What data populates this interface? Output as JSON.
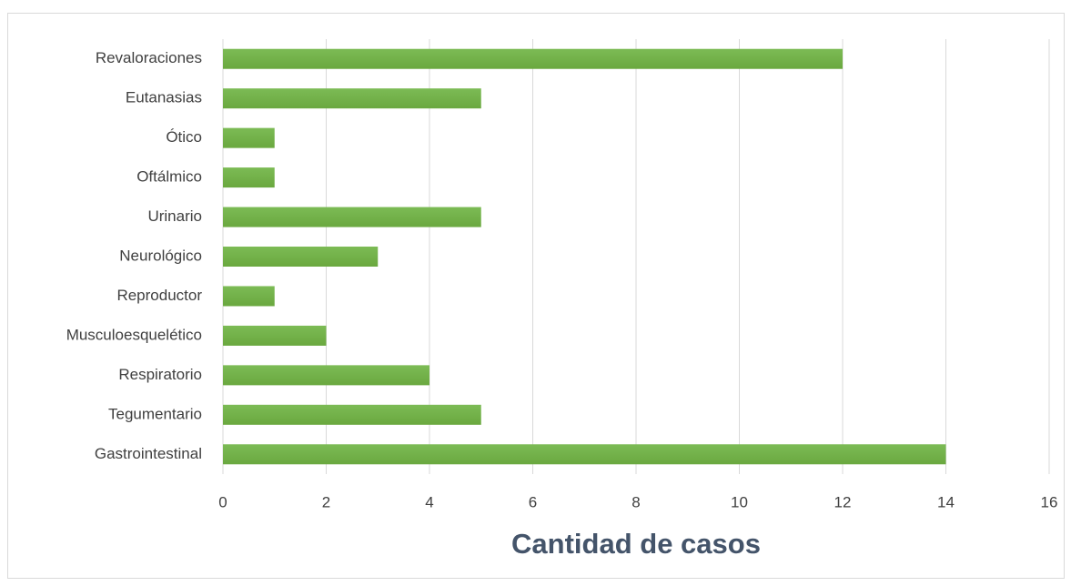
{
  "chart_data": {
    "type": "bar",
    "orientation": "horizontal",
    "x_label": "Cantidad de casos",
    "categories": [
      "Revaloraciones",
      "Eutanasias",
      "Ótico",
      "Oftálmico",
      "Urinario",
      "Neurológico",
      "Reproductor",
      "Musculoesquelético",
      "Respiratorio",
      "Tegumentario",
      "Gastrointestinal"
    ],
    "values": [
      12,
      5,
      1,
      1,
      5,
      3,
      1,
      2,
      4,
      5,
      14
    ],
    "color": "#70ad47",
    "xlim": [
      0,
      16
    ],
    "xticks": [
      0,
      2,
      4,
      6,
      8,
      10,
      12,
      14,
      16
    ],
    "grid": true
  }
}
